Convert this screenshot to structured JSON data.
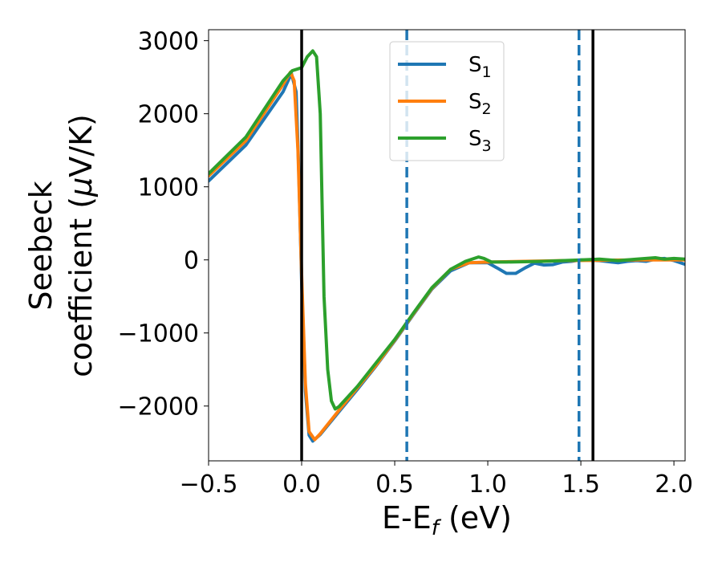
{
  "chart_data": {
    "type": "line",
    "xlabel_main": "E-E",
    "xlabel_sub": "f",
    "xlabel_unit": " (eV)",
    "ylabel_line1": "Seebeck",
    "ylabel_line2_prefix": "coefficient  (",
    "ylabel_line2_mu": "μ",
    "ylabel_line2_suffix": "V/K)",
    "xlim": [
      -0.5,
      2.06
    ],
    "ylim": [
      -2750,
      3150
    ],
    "x_ticks": [
      -0.5,
      0.0,
      0.5,
      1.0,
      1.5,
      2.0
    ],
    "x_tick_labels": [
      "−0.5",
      "0.0",
      "0.5",
      "1.0",
      "1.5",
      "2.0"
    ],
    "y_ticks": [
      -2000,
      -1000,
      0,
      1000,
      2000,
      3000
    ],
    "y_tick_labels": [
      "−2000",
      "−1000",
      "0",
      "1000",
      "2000",
      "3000"
    ],
    "grid": false,
    "legend_position": "top-center",
    "vertical_lines": [
      {
        "x": 0.0,
        "style": "solid",
        "color": "#000000"
      },
      {
        "x": 1.565,
        "style": "solid",
        "color": "#000000"
      },
      {
        "x": 0.565,
        "style": "dashed",
        "color": "#1f77b4"
      },
      {
        "x": 1.49,
        "style": "dashed",
        "color": "#1f77b4"
      }
    ],
    "series": [
      {
        "name": "S",
        "name_sub": "1",
        "color": "#1f77b4",
        "points": [
          [
            -0.5,
            1080
          ],
          [
            -0.3,
            1570
          ],
          [
            -0.1,
            2300
          ],
          [
            -0.055,
            2550
          ],
          [
            -0.03,
            2300
          ],
          [
            -0.015,
            1200
          ],
          [
            0.0,
            -300
          ],
          [
            0.02,
            -1800
          ],
          [
            0.04,
            -2400
          ],
          [
            0.06,
            -2480
          ],
          [
            0.1,
            -2390
          ],
          [
            0.2,
            -2080
          ],
          [
            0.3,
            -1770
          ],
          [
            0.4,
            -1450
          ],
          [
            0.5,
            -1110
          ],
          [
            0.6,
            -750
          ],
          [
            0.7,
            -400
          ],
          [
            0.8,
            -150
          ],
          [
            0.9,
            -40
          ],
          [
            1.0,
            -40
          ],
          [
            1.05,
            -110
          ],
          [
            1.1,
            -185
          ],
          [
            1.15,
            -185
          ],
          [
            1.2,
            -110
          ],
          [
            1.25,
            -45
          ],
          [
            1.3,
            -70
          ],
          [
            1.35,
            -65
          ],
          [
            1.4,
            -30
          ],
          [
            1.45,
            -20
          ],
          [
            1.5,
            0
          ],
          [
            1.6,
            -10
          ],
          [
            1.7,
            -40
          ],
          [
            1.75,
            -20
          ],
          [
            1.8,
            -10
          ],
          [
            1.85,
            -20
          ],
          [
            1.9,
            10
          ],
          [
            1.95,
            20
          ],
          [
            2.0,
            -10
          ],
          [
            2.06,
            -60
          ]
        ]
      },
      {
        "name": "S",
        "name_sub": "2",
        "color": "#ff7f0e",
        "points": [
          [
            -0.5,
            1150
          ],
          [
            -0.3,
            1630
          ],
          [
            -0.1,
            2400
          ],
          [
            -0.06,
            2570
          ],
          [
            -0.04,
            2450
          ],
          [
            -0.02,
            1500
          ],
          [
            0.0,
            -200
          ],
          [
            0.02,
            -1700
          ],
          [
            0.04,
            -2350
          ],
          [
            0.07,
            -2460
          ],
          [
            0.1,
            -2380
          ],
          [
            0.2,
            -2060
          ],
          [
            0.3,
            -1750
          ],
          [
            0.4,
            -1440
          ],
          [
            0.5,
            -1100
          ],
          [
            0.6,
            -740
          ],
          [
            0.7,
            -390
          ],
          [
            0.8,
            -130
          ],
          [
            0.9,
            -40
          ],
          [
            1.0,
            -30
          ],
          [
            1.2,
            -20
          ],
          [
            1.4,
            -10
          ],
          [
            1.6,
            -5
          ],
          [
            1.8,
            0
          ],
          [
            2.06,
            0
          ]
        ]
      },
      {
        "name": "S",
        "name_sub": "3",
        "color": "#2ca02c",
        "points": [
          [
            -0.5,
            1180
          ],
          [
            -0.3,
            1680
          ],
          [
            -0.1,
            2450
          ],
          [
            -0.05,
            2590
          ],
          [
            0.0,
            2630
          ],
          [
            0.03,
            2780
          ],
          [
            0.06,
            2860
          ],
          [
            0.08,
            2780
          ],
          [
            0.1,
            2000
          ],
          [
            0.12,
            -500
          ],
          [
            0.14,
            -1500
          ],
          [
            0.16,
            -1930
          ],
          [
            0.18,
            -2040
          ],
          [
            0.2,
            -2010
          ],
          [
            0.3,
            -1730
          ],
          [
            0.4,
            -1410
          ],
          [
            0.5,
            -1090
          ],
          [
            0.6,
            -730
          ],
          [
            0.7,
            -380
          ],
          [
            0.8,
            -130
          ],
          [
            0.88,
            -20
          ],
          [
            0.95,
            40
          ],
          [
            0.98,
            20
          ],
          [
            1.02,
            -30
          ],
          [
            1.1,
            -30
          ],
          [
            1.3,
            -20
          ],
          [
            1.5,
            0
          ],
          [
            1.6,
            10
          ],
          [
            1.7,
            -10
          ],
          [
            1.8,
            10
          ],
          [
            1.9,
            30
          ],
          [
            1.95,
            10
          ],
          [
            2.0,
            20
          ],
          [
            2.06,
            10
          ]
        ]
      }
    ]
  }
}
